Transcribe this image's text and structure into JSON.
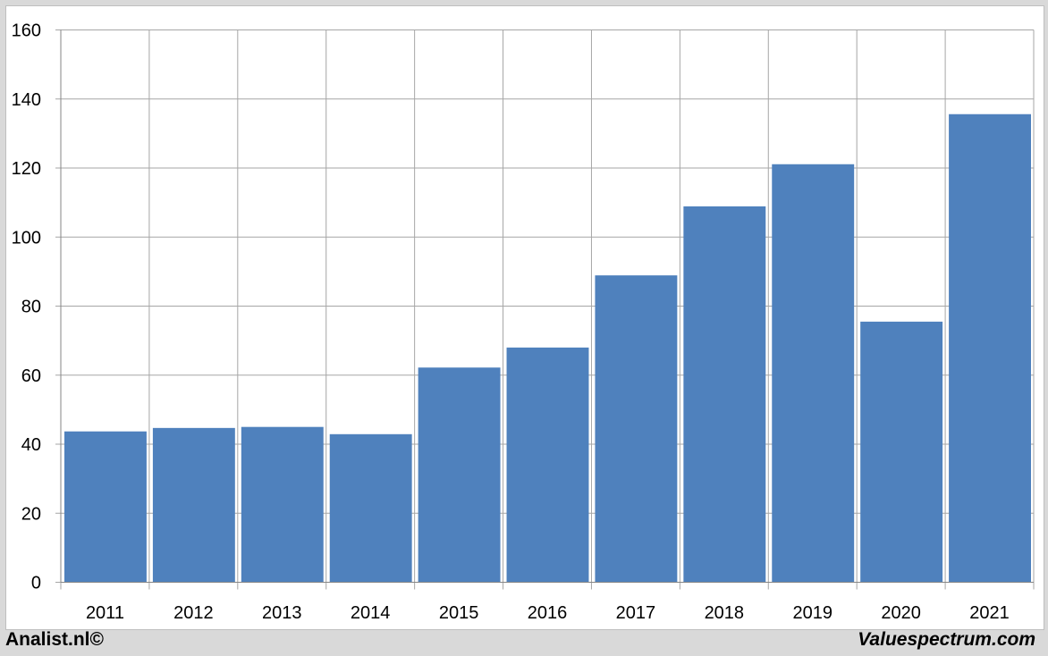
{
  "chart_data": {
    "type": "bar",
    "title": "",
    "xlabel": "",
    "ylabel": "",
    "categories": [
      "2011",
      "2012",
      "2013",
      "2014",
      "2015",
      "2016",
      "2017",
      "2018",
      "2019",
      "2020",
      "2021"
    ],
    "values": [
      43.7,
      44.7,
      45.0,
      42.9,
      62.2,
      68.0,
      88.9,
      108.9,
      121.1,
      75.5,
      135.6
    ],
    "ylim": [
      0,
      160
    ],
    "yticks": [
      "0",
      "20",
      "40",
      "60",
      "80",
      "100",
      "120",
      "140",
      "160"
    ],
    "grid": true,
    "legend": "none",
    "bar_color": "#4f81bd",
    "grid_color": "#a6a6a6"
  },
  "footer": {
    "left": "Analist.nl©",
    "right": "Valuespectrum.com"
  }
}
